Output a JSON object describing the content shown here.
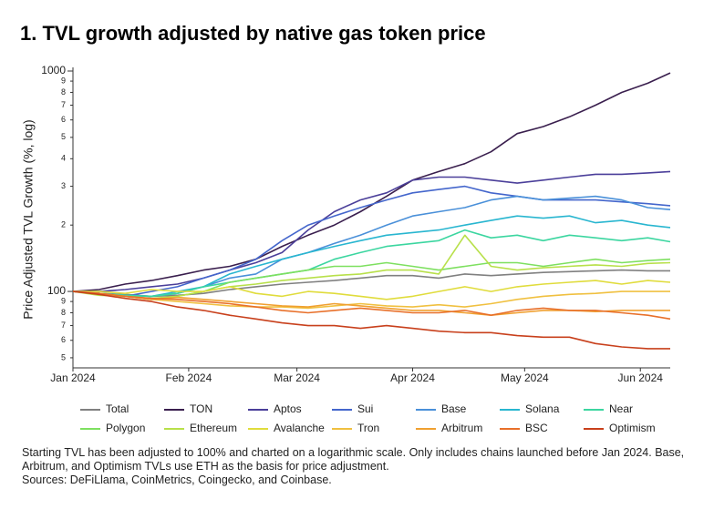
{
  "chart_data": {
    "type": "line",
    "title": "1. TVL growth adjusted by native gas token price",
    "y_label": "Price Adjusted TVL Growth (%, log)",
    "footnote": "Starting TVL has been adjusted to 100% and charted on a logarithmic scale. Only includes chains launched before Jan 2024. Base, Arbitrum, and Optimism TVLs use ETH as the basis for price adjustment.",
    "sources": "Sources: DeFiLlama, CoinMetrics, Coingecko, and Coinbase.",
    "log_scale": true,
    "grid": false,
    "x": [
      0,
      7,
      14,
      21,
      28,
      35,
      42,
      49,
      56,
      63,
      70,
      77,
      84,
      91,
      98,
      105,
      112,
      119,
      126,
      133,
      140,
      147,
      154,
      160
    ],
    "xlim": [
      0,
      160
    ],
    "xticks": [
      {
        "value": 0,
        "label": "Jan 2024"
      },
      {
        "value": 31,
        "label": "Feb 2024"
      },
      {
        "value": 60,
        "label": "Mar 2024"
      },
      {
        "value": 91,
        "label": "Apr 2024"
      },
      {
        "value": 121,
        "label": "May 2024"
      },
      {
        "value": 152,
        "label": "Jun 2024"
      }
    ],
    "ylim": [
      45,
      1000
    ],
    "yticks": [
      {
        "value": 50,
        "label": "5"
      },
      {
        "value": 60,
        "label": "6"
      },
      {
        "value": 70,
        "label": "7"
      },
      {
        "value": 80,
        "label": "8"
      },
      {
        "value": 90,
        "label": "9"
      },
      100,
      {
        "value": 200,
        "label": "2"
      },
      {
        "value": 300,
        "label": "3"
      },
      {
        "value": 400,
        "label": "4"
      },
      {
        "value": 500,
        "label": "5"
      },
      {
        "value": 600,
        "label": "6"
      },
      {
        "value": 700,
        "label": "7"
      },
      {
        "value": 800,
        "label": "8"
      },
      {
        "value": 900,
        "label": "9"
      },
      1000
    ],
    "series": [
      {
        "name": "Total",
        "color": "#808080",
        "values": [
          100,
          98,
          97,
          95,
          96,
          98,
          102,
          105,
          108,
          110,
          112,
          115,
          118,
          118,
          115,
          120,
          118,
          120,
          122,
          123,
          124,
          125,
          124,
          124
        ]
      },
      {
        "name": "TON",
        "color": "#3a1f4e",
        "values": [
          100,
          102,
          108,
          112,
          118,
          125,
          130,
          140,
          160,
          180,
          200,
          230,
          270,
          320,
          350,
          380,
          430,
          520,
          560,
          620,
          700,
          800,
          880,
          980
        ]
      },
      {
        "name": "Aptos",
        "color": "#4b3f9a",
        "values": [
          100,
          100,
          102,
          105,
          108,
          115,
          125,
          135,
          150,
          190,
          230,
          260,
          280,
          320,
          330,
          330,
          320,
          310,
          320,
          330,
          340,
          340,
          345,
          350
        ]
      },
      {
        "name": "Sui",
        "color": "#4466cc",
        "values": [
          100,
          98,
          95,
          100,
          105,
          115,
          125,
          140,
          170,
          200,
          220,
          240,
          260,
          280,
          290,
          300,
          280,
          270,
          260,
          260,
          260,
          255,
          250,
          245
        ]
      },
      {
        "name": "Base",
        "color": "#4a90d9",
        "values": [
          100,
          98,
          96,
          95,
          98,
          105,
          115,
          120,
          140,
          150,
          165,
          180,
          200,
          220,
          230,
          240,
          260,
          270,
          260,
          265,
          270,
          260,
          240,
          235
        ]
      },
      {
        "name": "Solana",
        "color": "#29b6d0",
        "values": [
          100,
          98,
          96,
          95,
          100,
          105,
          120,
          130,
          140,
          150,
          160,
          170,
          180,
          185,
          190,
          200,
          210,
          220,
          215,
          220,
          205,
          210,
          200,
          195
        ]
      },
      {
        "name": "Near",
        "color": "#3cd6a0",
        "values": [
          100,
          98,
          96,
          95,
          98,
          105,
          110,
          115,
          120,
          125,
          140,
          150,
          160,
          165,
          170,
          190,
          175,
          180,
          170,
          180,
          175,
          170,
          175,
          168
        ]
      },
      {
        "name": "Polygon",
        "color": "#7ee060",
        "values": [
          100,
          97,
          95,
          92,
          95,
          100,
          110,
          115,
          120,
          125,
          130,
          130,
          135,
          130,
          125,
          130,
          135,
          135,
          130,
          135,
          140,
          135,
          138,
          140
        ]
      },
      {
        "name": "Ethereum",
        "color": "#b8e04a",
        "values": [
          100,
          96,
          95,
          93,
          95,
          100,
          105,
          108,
          112,
          115,
          118,
          120,
          125,
          125,
          120,
          180,
          130,
          125,
          128,
          130,
          132,
          130,
          134,
          135
        ]
      },
      {
        "name": "Avalanche",
        "color": "#e0dc3c",
        "values": [
          100,
          100,
          98,
          102,
          100,
          100,
          105,
          98,
          95,
          100,
          98,
          95,
          92,
          95,
          100,
          105,
          100,
          105,
          108,
          110,
          112,
          108,
          112,
          110
        ]
      },
      {
        "name": "Tron",
        "color": "#f0c040",
        "values": [
          100,
          98,
          95,
          92,
          90,
          88,
          86,
          85,
          85,
          84,
          86,
          88,
          86,
          85,
          87,
          85,
          88,
          92,
          95,
          97,
          98,
          100,
          100,
          100
        ]
      },
      {
        "name": "Arbitrum",
        "color": "#f0a030",
        "values": [
          100,
          98,
          95,
          92,
          94,
          92,
          90,
          88,
          86,
          85,
          88,
          86,
          84,
          82,
          82,
          80,
          78,
          80,
          82,
          82,
          81,
          82,
          82,
          82
        ]
      },
      {
        "name": "BSC",
        "color": "#e8702a",
        "values": [
          100,
          98,
          95,
          93,
          92,
          90,
          88,
          85,
          82,
          80,
          82,
          84,
          82,
          80,
          80,
          82,
          78,
          82,
          84,
          82,
          82,
          80,
          78,
          75
        ]
      },
      {
        "name": "Optimism",
        "color": "#c8401c",
        "values": [
          100,
          97,
          93,
          90,
          85,
          82,
          78,
          75,
          72,
          70,
          70,
          68,
          70,
          68,
          66,
          65,
          65,
          63,
          62,
          62,
          58,
          56,
          55,
          55
        ]
      }
    ]
  }
}
